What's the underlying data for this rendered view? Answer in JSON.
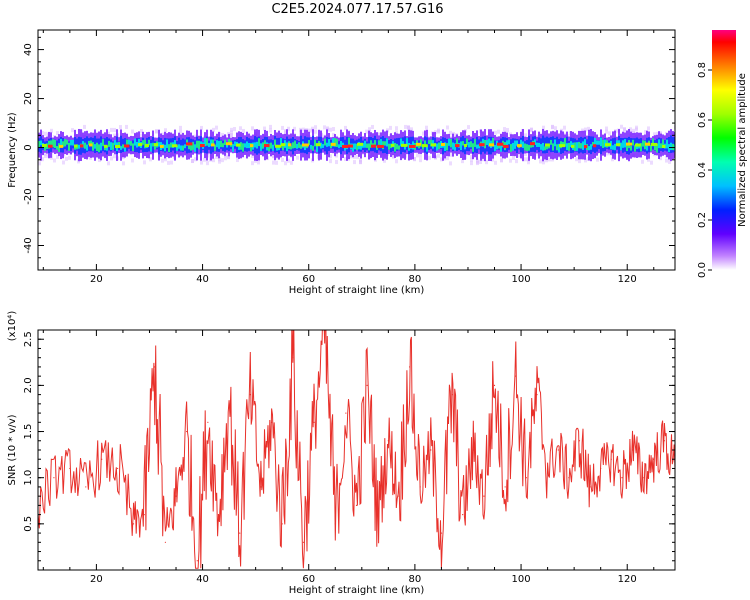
{
  "chart_data": [
    {
      "type": "heatmap",
      "title": "C2E5.2024.077.17.57.G16",
      "xlabel": "Height of straight line (km)",
      "ylabel": "Frequency (Hz)",
      "xlim": [
        9,
        129
      ],
      "ylim": [
        -50,
        48
      ],
      "xticks": [
        20,
        40,
        60,
        80,
        100,
        120
      ],
      "yticks": [
        -40,
        -20,
        0,
        20,
        40
      ],
      "grid": false,
      "band_center_hz": 1,
      "band_halfwidth_hz": 3,
      "colorbar": {
        "label": "Normalized spectral amplitude",
        "range": [
          0.0,
          0.96
        ],
        "ticks": [
          0.0,
          0.2,
          0.4,
          0.6,
          0.8
        ]
      }
    },
    {
      "type": "line",
      "xlabel": "Height of straight line (km)",
      "ylabel": "SNR (10 * v/v)",
      "y_multiplier": "(x10⁴)",
      "xlim": [
        9,
        129
      ],
      "ylim": [
        0,
        2.6
      ],
      "xticks": [
        20,
        40,
        60,
        80,
        100,
        120
      ],
      "yticks": [
        0.5,
        1.0,
        1.5,
        2.0,
        2.5
      ],
      "grid": false,
      "series_color": "#e8302a",
      "x": [
        9,
        12,
        15,
        18,
        21,
        24,
        27,
        29,
        31,
        33,
        35,
        37,
        39,
        41,
        43,
        45,
        47,
        49,
        51,
        53,
        55,
        57,
        59,
        61,
        63,
        65,
        67,
        69,
        71,
        73,
        75,
        77,
        79,
        81,
        83,
        85,
        87,
        89,
        91,
        93,
        95,
        97,
        99,
        101,
        103,
        105,
        107,
        109,
        111,
        113,
        115,
        117,
        119,
        121,
        123,
        125,
        127,
        129
      ],
      "values": [
        0.7,
        1.0,
        1.1,
        0.9,
        1.2,
        1.1,
        0.5,
        0.6,
        2.2,
        0.3,
        0.8,
        1.5,
        0.1,
        1.6,
        0.6,
        1.8,
        0.4,
        1.9,
        0.9,
        1.6,
        0.5,
        2.3,
        0.3,
        1.6,
        2.6,
        0.5,
        1.7,
        0.7,
        2.0,
        0.6,
        1.4,
        0.8,
        2.2,
        0.9,
        1.3,
        0.4,
        1.9,
        0.6,
        1.3,
        0.8,
        2.0,
        0.9,
        2.1,
        1.0,
        1.9,
        1.1,
        1.3,
        1.0,
        1.4,
        0.9,
        1.1,
        1.2,
        1.0,
        1.3,
        1.0,
        1.2,
        1.4,
        1.1
      ]
    }
  ]
}
